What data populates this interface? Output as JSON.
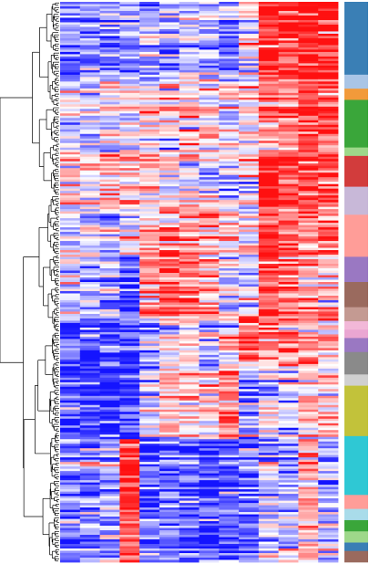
{
  "chart_data": {
    "type": "heatmap",
    "title": "",
    "xlabel": "",
    "ylabel": "",
    "legend": "none",
    "grid": false,
    "dendrogram": "left",
    "color_scale": {
      "low": "#1414ff",
      "mid": "#ffffff",
      "high": "#ff1010"
    },
    "n_rows": 246,
    "n_columns": 14,
    "column_profiles": [
      [
        {
          "until": 0.14,
          "value": -0.55
        },
        {
          "until": 0.27,
          "value": -0.15
        },
        {
          "until": 0.36,
          "value": 0.15
        },
        {
          "until": 0.45,
          "value": -0.15
        },
        {
          "until": 0.56,
          "value": -0.25
        },
        {
          "until": 0.66,
          "value": -0.7
        },
        {
          "until": 0.78,
          "value": -0.8
        },
        {
          "until": 1.0,
          "value": -0.5
        }
      ],
      [
        {
          "until": 0.14,
          "value": -0.55
        },
        {
          "until": 0.27,
          "value": -0.1
        },
        {
          "until": 0.36,
          "value": 0.2
        },
        {
          "until": 0.45,
          "value": -0.1
        },
        {
          "until": 0.56,
          "value": -0.25
        },
        {
          "until": 0.66,
          "value": -0.7
        },
        {
          "until": 0.78,
          "value": -0.8
        },
        {
          "until": 1.0,
          "value": -0.5
        }
      ],
      [
        {
          "until": 0.14,
          "value": -0.5
        },
        {
          "until": 0.27,
          "value": 0.0
        },
        {
          "until": 0.36,
          "value": 0.35
        },
        {
          "until": 0.45,
          "value": -0.05
        },
        {
          "until": 0.56,
          "value": -0.4
        },
        {
          "until": 0.66,
          "value": -0.7
        },
        {
          "until": 0.78,
          "value": -0.9
        },
        {
          "until": 1.0,
          "value": -0.3
        }
      ],
      [
        {
          "until": 0.14,
          "value": -0.5
        },
        {
          "until": 0.27,
          "value": 0.0
        },
        {
          "until": 0.36,
          "value": 0.3
        },
        {
          "until": 0.45,
          "value": 0.0
        },
        {
          "until": 0.56,
          "value": -0.8
        },
        {
          "until": 0.66,
          "value": -0.7
        },
        {
          "until": 0.78,
          "value": -0.9
        },
        {
          "until": 1.0,
          "value": 0.85
        }
      ],
      [
        {
          "until": 0.14,
          "value": -0.3
        },
        {
          "until": 0.27,
          "value": 0.1
        },
        {
          "until": 0.36,
          "value": 0.2
        },
        {
          "until": 0.45,
          "value": 0.35
        },
        {
          "until": 0.56,
          "value": 0.4
        },
        {
          "until": 0.66,
          "value": -0.3
        },
        {
          "until": 0.78,
          "value": -0.2
        },
        {
          "until": 1.0,
          "value": -0.6
        }
      ],
      [
        {
          "until": 0.14,
          "value": -0.3
        },
        {
          "until": 0.27,
          "value": 0.15
        },
        {
          "until": 0.36,
          "value": 0.1
        },
        {
          "until": 0.45,
          "value": 0.5
        },
        {
          "until": 0.56,
          "value": 0.7
        },
        {
          "until": 0.66,
          "value": 0.0
        },
        {
          "until": 0.78,
          "value": 0.2
        },
        {
          "until": 1.0,
          "value": -0.6
        }
      ],
      [
        {
          "until": 0.14,
          "value": -0.2
        },
        {
          "until": 0.27,
          "value": 0.25
        },
        {
          "until": 0.36,
          "value": 0.0
        },
        {
          "until": 0.45,
          "value": 0.55
        },
        {
          "until": 0.56,
          "value": 0.65
        },
        {
          "until": 0.66,
          "value": 0.05
        },
        {
          "until": 0.78,
          "value": 0.3
        },
        {
          "until": 1.0,
          "value": -0.7
        }
      ],
      [
        {
          "until": 0.14,
          "value": -0.4
        },
        {
          "until": 0.27,
          "value": 0.15
        },
        {
          "until": 0.36,
          "value": -0.1
        },
        {
          "until": 0.45,
          "value": 0.3
        },
        {
          "until": 0.56,
          "value": 0.3
        },
        {
          "until": 0.66,
          "value": -0.2
        },
        {
          "until": 0.78,
          "value": 0.1
        },
        {
          "until": 1.0,
          "value": -0.7
        }
      ],
      [
        {
          "until": 0.14,
          "value": -0.55
        },
        {
          "until": 0.27,
          "value": 0.0
        },
        {
          "until": 0.36,
          "value": -0.2
        },
        {
          "until": 0.45,
          "value": 0.1
        },
        {
          "until": 0.56,
          "value": -0.1
        },
        {
          "until": 0.66,
          "value": 0.1
        },
        {
          "until": 0.78,
          "value": 0.5
        },
        {
          "until": 1.0,
          "value": -0.75
        }
      ],
      [
        {
          "until": 0.14,
          "value": -0.1
        },
        {
          "until": 0.27,
          "value": 0.2
        },
        {
          "until": 0.36,
          "value": 0.0
        },
        {
          "until": 0.45,
          "value": 0.05
        },
        {
          "until": 0.56,
          "value": -0.2
        },
        {
          "until": 0.66,
          "value": 0.7
        },
        {
          "until": 0.78,
          "value": -0.5
        },
        {
          "until": 1.0,
          "value": -0.6
        }
      ],
      [
        {
          "until": 0.14,
          "value": 0.95
        },
        {
          "until": 0.27,
          "value": 0.6
        },
        {
          "until": 0.36,
          "value": 0.9
        },
        {
          "until": 0.45,
          "value": 0.85
        },
        {
          "until": 0.56,
          "value": 0.7
        },
        {
          "until": 0.66,
          "value": 0.7
        },
        {
          "until": 0.78,
          "value": -0.1
        },
        {
          "until": 1.0,
          "value": -0.2
        }
      ],
      [
        {
          "until": 0.14,
          "value": 0.95
        },
        {
          "until": 0.27,
          "value": 0.55
        },
        {
          "until": 0.36,
          "value": 0.85
        },
        {
          "until": 0.45,
          "value": 0.65
        },
        {
          "until": 0.56,
          "value": 0.5
        },
        {
          "until": 0.66,
          "value": 0.4
        },
        {
          "until": 0.78,
          "value": -0.3
        },
        {
          "until": 1.0,
          "value": -0.3
        }
      ],
      [
        {
          "until": 0.14,
          "value": 1.0
        },
        {
          "until": 0.27,
          "value": 0.75
        },
        {
          "until": 0.36,
          "value": 0.8
        },
        {
          "until": 0.45,
          "value": 0.7
        },
        {
          "until": 0.56,
          "value": 0.4
        },
        {
          "until": 0.66,
          "value": 0.45
        },
        {
          "until": 0.78,
          "value": 0.2
        },
        {
          "until": 1.0,
          "value": 0.3
        }
      ],
      [
        {
          "until": 0.14,
          "value": 0.8
        },
        {
          "until": 0.27,
          "value": 0.7
        },
        {
          "until": 0.36,
          "value": 0.75
        },
        {
          "until": 0.45,
          "value": 0.55
        },
        {
          "until": 0.56,
          "value": 0.3
        },
        {
          "until": 0.66,
          "value": 0.2
        },
        {
          "until": 0.78,
          "value": 0.1
        },
        {
          "until": 1.0,
          "value": -0.2
        }
      ]
    ],
    "cluster_bar": [
      {
        "start": 0.0,
        "end": 0.13,
        "color": "#3a7fb5"
      },
      {
        "start": 0.13,
        "end": 0.155,
        "color": "#a9c5e6"
      },
      {
        "start": 0.155,
        "end": 0.175,
        "color": "#f29a3a"
      },
      {
        "start": 0.175,
        "end": 0.26,
        "color": "#3aa63a"
      },
      {
        "start": 0.26,
        "end": 0.275,
        "color": "#9ed88a"
      },
      {
        "start": 0.275,
        "end": 0.33,
        "color": "#d23c3c"
      },
      {
        "start": 0.33,
        "end": 0.38,
        "color": "#c8b8d8"
      },
      {
        "start": 0.38,
        "end": 0.455,
        "color": "#ff9d98"
      },
      {
        "start": 0.455,
        "end": 0.5,
        "color": "#9a78c2"
      },
      {
        "start": 0.5,
        "end": 0.545,
        "color": "#9a6a5e"
      },
      {
        "start": 0.545,
        "end": 0.57,
        "color": "#c49a92"
      },
      {
        "start": 0.57,
        "end": 0.585,
        "color": "#f2b8d8"
      },
      {
        "start": 0.585,
        "end": 0.6,
        "color": "#eaa6d2"
      },
      {
        "start": 0.6,
        "end": 0.625,
        "color": "#9a78c2"
      },
      {
        "start": 0.625,
        "end": 0.665,
        "color": "#8a8a8a"
      },
      {
        "start": 0.665,
        "end": 0.685,
        "color": "#d0d0d0"
      },
      {
        "start": 0.685,
        "end": 0.775,
        "color": "#c2c23a"
      },
      {
        "start": 0.775,
        "end": 0.88,
        "color": "#2fc8d4"
      },
      {
        "start": 0.88,
        "end": 0.905,
        "color": "#ff9d98"
      },
      {
        "start": 0.905,
        "end": 0.925,
        "color": "#a9dcea"
      },
      {
        "start": 0.925,
        "end": 0.945,
        "color": "#3aa63a"
      },
      {
        "start": 0.945,
        "end": 0.965,
        "color": "#9ed88a"
      },
      {
        "start": 0.965,
        "end": 0.98,
        "color": "#3a7fb5"
      },
      {
        "start": 0.98,
        "end": 1.0,
        "color": "#9a6a5e"
      }
    ]
  }
}
